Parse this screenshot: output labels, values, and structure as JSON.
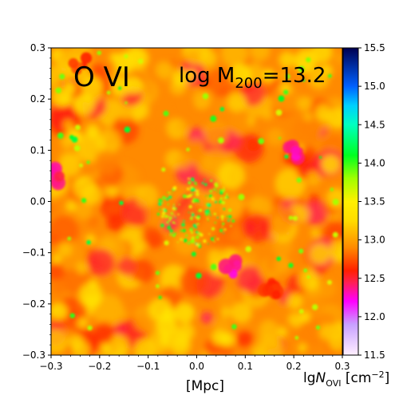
{
  "chart_data": {
    "type": "heatmap",
    "panel_title": "O VI",
    "annotation": {
      "prefix": "log M",
      "subscript": "200",
      "suffix": "=13.2"
    },
    "xlabel": "[Mpc]",
    "colorbar_label": {
      "prefix": "lg",
      "symbol": "N",
      "subscript": "OVI",
      "unit_open": " [cm",
      "unit_power": "−2",
      "unit_close": "]"
    },
    "xlim": [
      -0.3,
      0.3
    ],
    "ylim": [
      -0.3,
      0.3
    ],
    "x_ticks": [
      "−0.3",
      "−0.2",
      "−0.1",
      "0.0",
      "0.1",
      "0.2",
      "0.3"
    ],
    "x_tick_values": [
      -0.3,
      -0.2,
      -0.1,
      0.0,
      0.1,
      0.2,
      0.3
    ],
    "y_ticks": [
      "−0.3",
      "−0.2",
      "−0.1",
      "0.0",
      "0.1",
      "0.2",
      "0.3"
    ],
    "y_tick_values": [
      -0.3,
      -0.2,
      -0.1,
      0.0,
      0.1,
      0.2,
      0.3
    ],
    "colorbar_range": [
      11.5,
      15.5
    ],
    "colorbar_ticks": [
      "11.5",
      "12.0",
      "12.5",
      "13.0",
      "13.5",
      "14.0",
      "14.5",
      "15.0",
      "15.5"
    ],
    "colorbar_tick_values": [
      11.5,
      12.0,
      12.5,
      13.0,
      13.5,
      14.0,
      14.5,
      15.0,
      15.5
    ],
    "colormap_stops": [
      {
        "value": 11.5,
        "color": "#fff0ff"
      },
      {
        "value": 11.9,
        "color": "#c8a0ff"
      },
      {
        "value": 12.2,
        "color": "#ff00ff"
      },
      {
        "value": 12.45,
        "color": "#ff2050"
      },
      {
        "value": 12.6,
        "color": "#ff2000"
      },
      {
        "value": 12.9,
        "color": "#ff8a00"
      },
      {
        "value": 13.25,
        "color": "#ffdc00"
      },
      {
        "value": 13.5,
        "color": "#fff000"
      },
      {
        "value": 13.8,
        "color": "#a0ff00"
      },
      {
        "value": 14.1,
        "color": "#00ff20"
      },
      {
        "value": 14.5,
        "color": "#00ffc0"
      },
      {
        "value": 14.75,
        "color": "#00d0ff"
      },
      {
        "value": 15.0,
        "color": "#0060ff"
      },
      {
        "value": 15.5,
        "color": "#000050"
      }
    ],
    "column_density_field": {
      "background_level": 12.9,
      "high_clumps": [
        {
          "x": 0.2,
          "y": 0.1,
          "level": 12.2
        },
        {
          "x": 0.07,
          "y": -0.13,
          "level": 12.2
        },
        {
          "x": -0.29,
          "y": 0.05,
          "level": 12.3
        },
        {
          "x": -0.24,
          "y": 0.27,
          "level": 12.6
        },
        {
          "x": 0.15,
          "y": -0.17,
          "level": 12.5
        }
      ],
      "central_group": {
        "x": 0.0,
        "y": -0.02,
        "radius": 0.08
      }
    }
  }
}
